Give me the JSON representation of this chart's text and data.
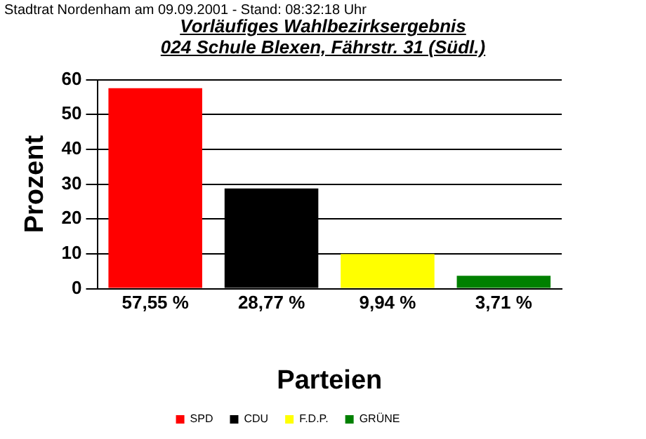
{
  "chart_data": {
    "type": "bar",
    "title": "Vorläufiges Wahlbezirksergebnis",
    "subtitle": "024 Schule Blexen, Fährstr. 31 (Südl.)",
    "annotations": [
      "Stadtrat Nordenham am 09.09.2001 - Stand: 08:32:18 Uhr"
    ],
    "ylabel": "Prozent",
    "xlabel": "Parteien",
    "categories": [
      null,
      null,
      null,
      null
    ],
    "series": [
      {
        "name": "SPD",
        "color": "#ff0000",
        "values": [
          57.55,
          null,
          null,
          null
        ],
        "value_labels": [
          "57,55 %",
          null,
          null,
          null
        ]
      },
      {
        "name": "CDU",
        "color": "#000000",
        "values": [
          null,
          28.77,
          null,
          null
        ],
        "value_labels": [
          null,
          "28,77 %",
          null,
          null
        ]
      },
      {
        "name": "F.D.P.",
        "color": "#ffff00",
        "values": [
          null,
          null,
          9.94,
          null
        ],
        "value_labels": [
          null,
          null,
          "9,94 %",
          null
        ]
      },
      {
        "name": "GRÜNE",
        "color": "#008000",
        "values": [
          null,
          null,
          null,
          3.71
        ],
        "value_labels": [
          null,
          null,
          null,
          "3,71 %"
        ]
      }
    ],
    "stacked": true,
    "ylim": [
      0,
      60
    ],
    "yticks": [
      0,
      10,
      20,
      30,
      40,
      50,
      60
    ],
    "grid": "y",
    "legend": "bottom"
  }
}
